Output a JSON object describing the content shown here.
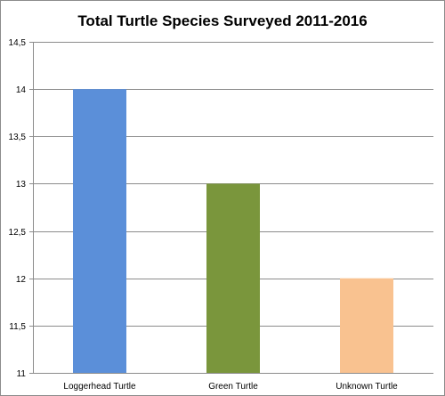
{
  "chart_data": {
    "type": "bar",
    "title": "Total Turtle Species Surveyed 2011-2016",
    "xlabel": "",
    "ylabel": "",
    "categories": [
      "Loggerhead Turtle",
      "Green Turtle",
      "Unknown Turtle"
    ],
    "values": [
      14,
      13,
      12
    ],
    "colors": [
      "#5b8fd9",
      "#7a963c",
      "#f9c290"
    ],
    "ylim": [
      11,
      14.5
    ],
    "yticks": [
      11,
      11.5,
      12,
      12.5,
      13,
      13.5,
      14,
      14.5
    ],
    "ytick_labels": [
      "11",
      "11,5",
      "12",
      "12,5",
      "13",
      "13,5",
      "14",
      "14,5"
    ],
    "grid": "horizontal",
    "legend": "none"
  }
}
